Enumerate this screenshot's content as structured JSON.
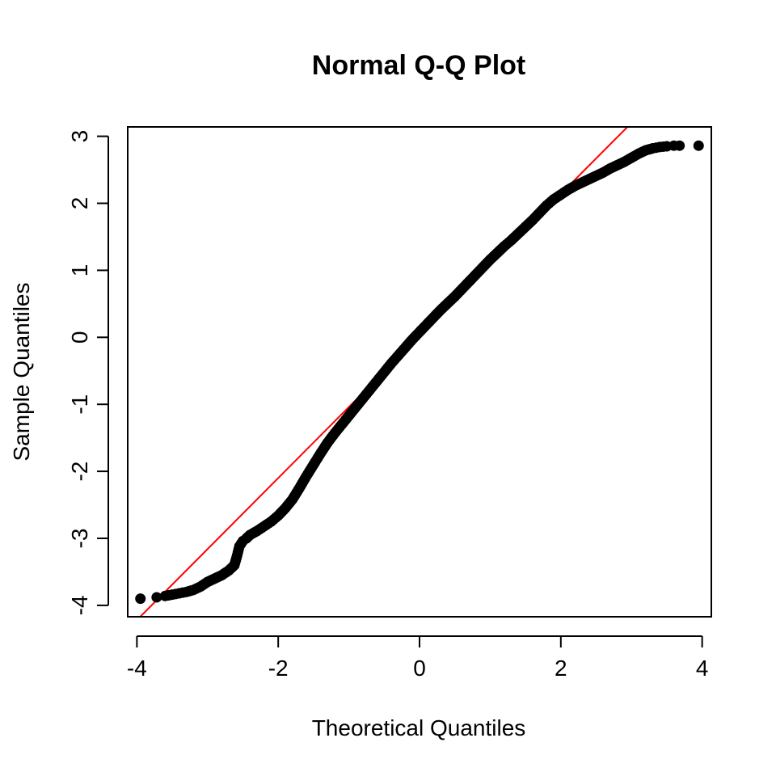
{
  "chart_data": {
    "type": "scatter",
    "title": "Normal Q-Q Plot",
    "xlabel": "Theoretical Quantiles",
    "ylabel": "Sample Quantiles",
    "xlim": [
      -4.13,
      4.13
    ],
    "ylim": [
      -4.17,
      3.14
    ],
    "x_ticks": [
      -4,
      -2,
      0,
      2,
      4
    ],
    "x_tick_labels": [
      "-4",
      "-2",
      "0",
      "2",
      "4"
    ],
    "y_ticks": [
      -4,
      -3,
      -2,
      -1,
      0,
      1,
      2,
      3
    ],
    "y_tick_labels": [
      "-4",
      "-3",
      "-2",
      "-1",
      "0",
      "1",
      "2",
      "3"
    ],
    "grid": false,
    "colors": {
      "points": "#000000",
      "reference_line": "#ff0000",
      "frame": "#000000"
    },
    "reference_line": {
      "intercept": 0.02,
      "slope": 1.06
    },
    "series": [
      {
        "points": [
          [
            -3.95,
            -3.9
          ],
          [
            -3.72,
            -3.88
          ],
          [
            -3.6,
            -3.86
          ],
          [
            -3.5,
            -3.84
          ],
          [
            -3.4,
            -3.82
          ],
          [
            -3.3,
            -3.8
          ],
          [
            -3.2,
            -3.77
          ],
          [
            -3.1,
            -3.72
          ],
          [
            -3.0,
            -3.65
          ],
          [
            -2.9,
            -3.6
          ],
          [
            -2.8,
            -3.55
          ],
          [
            -2.7,
            -3.48
          ],
          [
            -2.62,
            -3.4
          ],
          [
            -2.58,
            -3.25
          ],
          [
            -2.55,
            -3.12
          ],
          [
            -2.5,
            -3.04
          ],
          [
            -2.45,
            -3.0
          ],
          [
            -2.4,
            -2.95
          ],
          [
            -2.3,
            -2.89
          ],
          [
            -2.2,
            -2.82
          ],
          [
            -2.1,
            -2.75
          ],
          [
            -2.0,
            -2.66
          ],
          [
            -1.9,
            -2.55
          ],
          [
            -1.8,
            -2.42
          ],
          [
            -1.7,
            -2.25
          ],
          [
            -1.6,
            -2.07
          ],
          [
            -1.5,
            -1.9
          ],
          [
            -1.4,
            -1.73
          ],
          [
            -1.3,
            -1.57
          ],
          [
            -1.2,
            -1.43
          ],
          [
            -1.1,
            -1.3
          ],
          [
            -1.0,
            -1.17
          ],
          [
            -0.9,
            -1.04
          ],
          [
            -0.8,
            -0.91
          ],
          [
            -0.7,
            -0.78
          ],
          [
            -0.6,
            -0.65
          ],
          [
            -0.5,
            -0.52
          ],
          [
            -0.4,
            -0.39
          ],
          [
            -0.3,
            -0.27
          ],
          [
            -0.2,
            -0.15
          ],
          [
            -0.1,
            -0.03
          ],
          [
            0.0,
            0.08
          ],
          [
            0.1,
            0.19
          ],
          [
            0.2,
            0.3
          ],
          [
            0.3,
            0.41
          ],
          [
            0.4,
            0.51
          ],
          [
            0.5,
            0.61
          ],
          [
            0.6,
            0.72
          ],
          [
            0.7,
            0.83
          ],
          [
            0.8,
            0.94
          ],
          [
            0.9,
            1.05
          ],
          [
            1.0,
            1.16
          ],
          [
            1.1,
            1.26
          ],
          [
            1.2,
            1.36
          ],
          [
            1.3,
            1.45
          ],
          [
            1.4,
            1.55
          ],
          [
            1.5,
            1.65
          ],
          [
            1.6,
            1.75
          ],
          [
            1.7,
            1.86
          ],
          [
            1.8,
            1.97
          ],
          [
            1.9,
            2.06
          ],
          [
            2.0,
            2.13
          ],
          [
            2.1,
            2.2
          ],
          [
            2.2,
            2.26
          ],
          [
            2.3,
            2.31
          ],
          [
            2.4,
            2.36
          ],
          [
            2.5,
            2.41
          ],
          [
            2.6,
            2.46
          ],
          [
            2.7,
            2.52
          ],
          [
            2.8,
            2.57
          ],
          [
            2.9,
            2.62
          ],
          [
            3.0,
            2.68
          ],
          [
            3.1,
            2.74
          ],
          [
            3.2,
            2.79
          ],
          [
            3.3,
            2.82
          ],
          [
            3.4,
            2.84
          ],
          [
            3.5,
            2.85
          ],
          [
            3.6,
            2.86
          ],
          [
            3.68,
            2.86
          ],
          [
            3.95,
            2.86
          ]
        ]
      }
    ]
  }
}
